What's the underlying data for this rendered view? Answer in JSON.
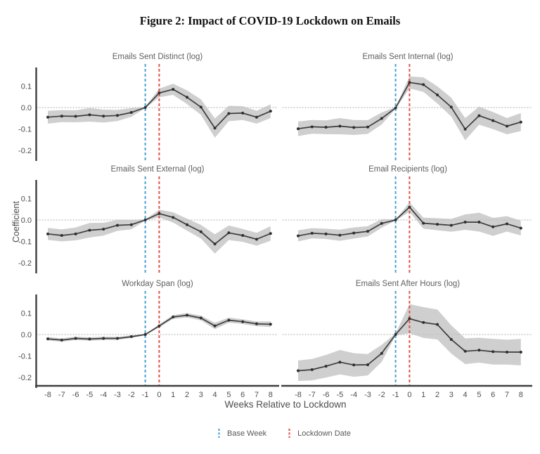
{
  "figure_title": "Figure 2: Impact of COVID-19 Lockdown on Emails",
  "chart_data": {
    "type": "line",
    "layout": "3x2 grid of event-study panels, shared axes, gridlines off, legend bottom-center",
    "x_weeks": [
      -8,
      -7,
      -6,
      -5,
      -4,
      -3,
      -2,
      -1,
      0,
      1,
      2,
      3,
      4,
      5,
      6,
      7,
      8
    ],
    "xlabel": "Weeks Relative to Lockdown",
    "ylabel": "Coefficient",
    "yticks": [
      0.1,
      0.0,
      -0.1,
      -0.2
    ],
    "ylim": [
      -0.25,
      0.18
    ],
    "hline": 0,
    "line_color": "#3d3d3d",
    "marker_color": "#2f2f2f",
    "band_color": "#cacaca",
    "zero_line_color": "#bfbfbf",
    "axis_spine_color": "#3f3f3f",
    "text_color": "#5f5f5f",
    "vlines": [
      {
        "x": -1,
        "label": "Base Week",
        "color": "#4BA3D3"
      },
      {
        "x": 0,
        "label": "Lockdown Date",
        "color": "#E4544A"
      }
    ],
    "panels": [
      {
        "title": "Emails Sent Distinct (log)",
        "values": [
          -0.045,
          -0.04,
          -0.041,
          -0.034,
          -0.04,
          -0.037,
          -0.023,
          0.0,
          0.068,
          0.085,
          0.048,
          0.002,
          -0.096,
          -0.028,
          -0.026,
          -0.045,
          -0.017
        ],
        "ci_halfwidth": [
          0.03,
          0.028,
          0.028,
          0.032,
          0.03,
          0.026,
          0.02,
          0.003,
          0.02,
          0.026,
          0.032,
          0.036,
          0.045,
          0.036,
          0.032,
          0.03,
          0.032
        ]
      },
      {
        "title": "Emails Sent Internal (log)",
        "values": [
          -0.099,
          -0.09,
          -0.092,
          -0.087,
          -0.093,
          -0.091,
          -0.051,
          -0.002,
          0.117,
          0.107,
          0.059,
          0.002,
          -0.101,
          -0.038,
          -0.061,
          -0.087,
          -0.068
        ],
        "ci_halfwidth": [
          0.034,
          0.032,
          0.032,
          0.038,
          0.035,
          0.032,
          0.028,
          0.004,
          0.028,
          0.034,
          0.04,
          0.044,
          0.052,
          0.042,
          0.04,
          0.038,
          0.042
        ]
      },
      {
        "title": "Emails Sent External (log)",
        "values": [
          -0.065,
          -0.072,
          -0.065,
          -0.048,
          -0.043,
          -0.025,
          -0.022,
          0.0,
          0.03,
          0.012,
          -0.022,
          -0.055,
          -0.112,
          -0.06,
          -0.072,
          -0.09,
          -0.063
        ],
        "ci_halfwidth": [
          0.028,
          0.028,
          0.03,
          0.034,
          0.03,
          0.026,
          0.022,
          0.003,
          0.018,
          0.024,
          0.028,
          0.032,
          0.045,
          0.034,
          0.03,
          0.03,
          0.034
        ]
      },
      {
        "title": "Email Recipients (log)",
        "values": [
          -0.074,
          -0.062,
          -0.065,
          -0.071,
          -0.061,
          -0.053,
          -0.016,
          0.0,
          0.06,
          -0.015,
          -0.02,
          -0.025,
          -0.01,
          -0.01,
          -0.032,
          -0.018,
          -0.038
        ],
        "ci_halfwidth": [
          0.026,
          0.024,
          0.024,
          0.026,
          0.026,
          0.024,
          0.02,
          0.003,
          0.022,
          0.026,
          0.028,
          0.03,
          0.036,
          0.044,
          0.042,
          0.036,
          0.034
        ]
      },
      {
        "title": "Workday Span (log)",
        "values": [
          -0.02,
          -0.026,
          -0.018,
          -0.021,
          -0.018,
          -0.018,
          -0.01,
          0.0,
          0.04,
          0.082,
          0.09,
          0.077,
          0.04,
          0.067,
          0.06,
          0.05,
          0.048
        ],
        "ci_halfwidth": [
          0.008,
          0.008,
          0.008,
          0.008,
          0.008,
          0.007,
          0.006,
          0.002,
          0.007,
          0.009,
          0.01,
          0.011,
          0.015,
          0.012,
          0.011,
          0.011,
          0.013
        ]
      },
      {
        "title": "Emails Sent After Hours (log)",
        "values": [
          -0.169,
          -0.164,
          -0.148,
          -0.129,
          -0.142,
          -0.141,
          -0.088,
          0.0,
          0.074,
          0.056,
          0.047,
          -0.023,
          -0.078,
          -0.073,
          -0.08,
          -0.082,
          -0.082
        ],
        "ci_halfwidth": [
          0.048,
          0.05,
          0.053,
          0.057,
          0.055,
          0.05,
          0.04,
          0.005,
          0.068,
          0.072,
          0.07,
          0.066,
          0.06,
          0.058,
          0.06,
          0.058,
          0.062
        ]
      }
    ]
  }
}
